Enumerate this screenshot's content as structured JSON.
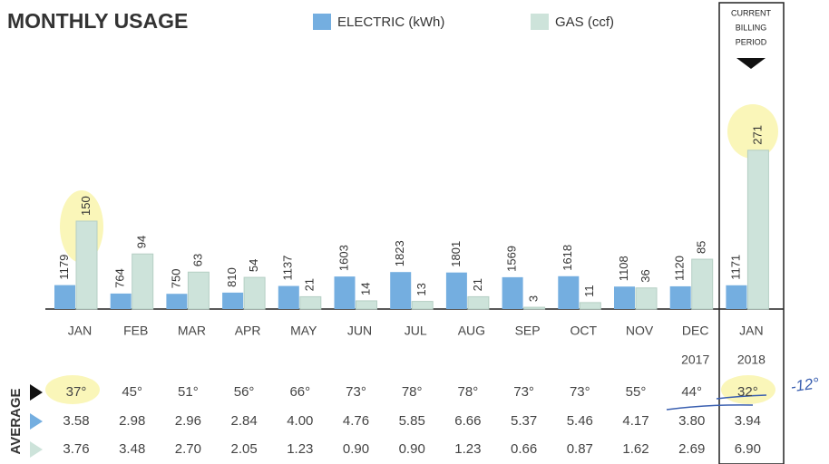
{
  "chart_data": {
    "type": "bar",
    "title": "MONTHLY USAGE",
    "categories": [
      "JAN",
      "FEB",
      "MAR",
      "APR",
      "MAY",
      "JUN",
      "JUL",
      "AUG",
      "SEP",
      "OCT",
      "NOV",
      "DEC",
      "JAN"
    ],
    "years": [
      null,
      null,
      null,
      null,
      null,
      null,
      null,
      null,
      null,
      null,
      null,
      "2017",
      "2018"
    ],
    "series": [
      {
        "name": "ELECTRIC (kWh)",
        "color": "#74aee0",
        "values": [
          1179,
          764,
          750,
          810,
          1137,
          1603,
          1823,
          1801,
          1569,
          1618,
          1108,
          1120,
          1171
        ]
      },
      {
        "name": "GAS (ccf)",
        "color": "#cde3da",
        "axis": "y2",
        "values": [
          150,
          94,
          63,
          54,
          21,
          14,
          13,
          21,
          3,
          11,
          36,
          85,
          271
        ]
      }
    ],
    "ylim": [
      0,
      13000
    ],
    "y2lim": [
      0,
      450
    ],
    "current_period": [
      "CURRENT",
      "BILLING",
      "PERIOD"
    ],
    "average": {
      "label": "AVERAGE",
      "temperature": [
        "37°",
        "45°",
        "51°",
        "56°",
        "66°",
        "73°",
        "78°",
        "78°",
        "73°",
        "73°",
        "55°",
        "44°",
        "32°"
      ],
      "electric": [
        "3.58",
        "2.98",
        "2.96",
        "2.84",
        "4.00",
        "4.76",
        "5.85",
        "6.66",
        "5.37",
        "5.46",
        "4.17",
        "3.80",
        "3.94"
      ],
      "gas": [
        "3.76",
        "3.48",
        "2.70",
        "2.05",
        "1.23",
        "0.90",
        "0.90",
        "1.23",
        "0.66",
        "0.87",
        "1.62",
        "2.69",
        "6.90"
      ]
    },
    "annotation": "-12°"
  }
}
